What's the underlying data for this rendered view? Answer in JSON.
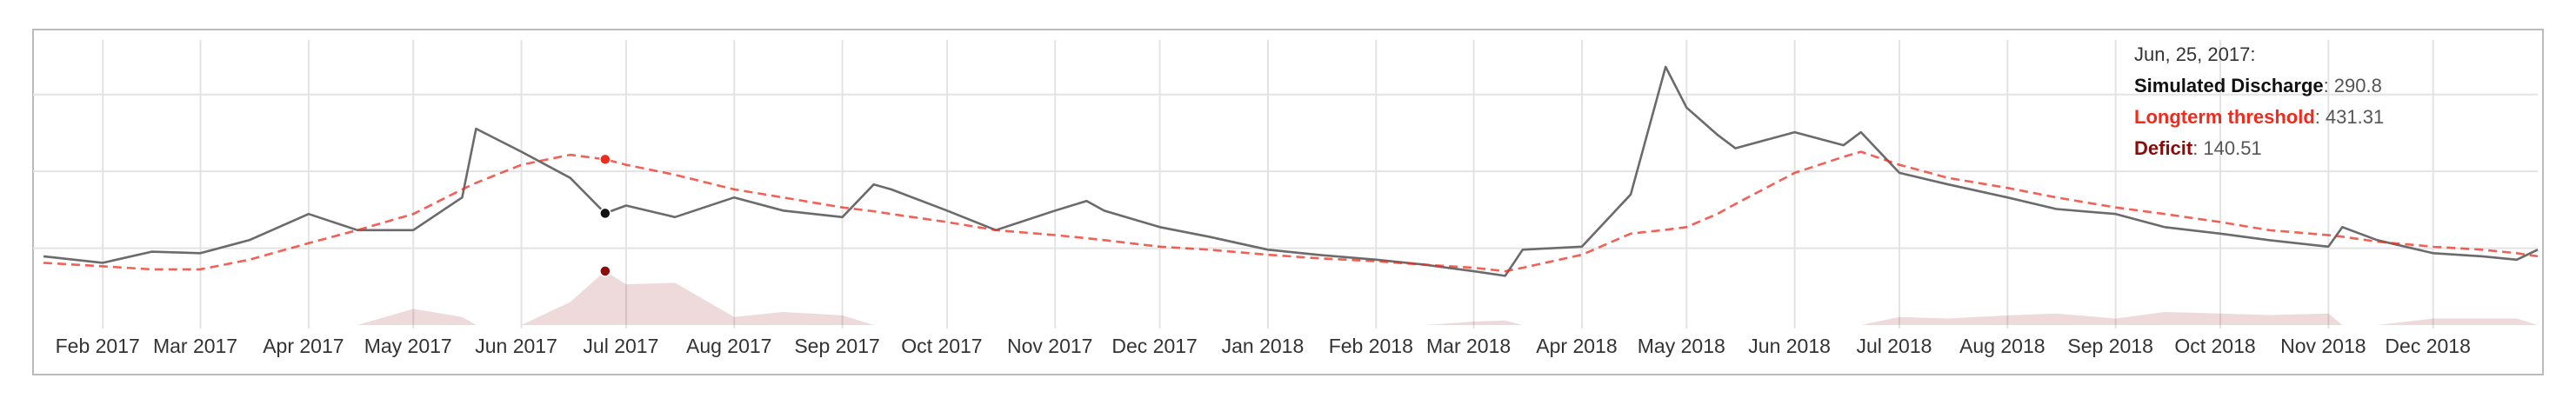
{
  "chart_data": {
    "type": "line",
    "x": [
      "2017-01-15",
      "2017-02-01",
      "2017-02-15",
      "2017-03-01",
      "2017-03-15",
      "2017-04-01",
      "2017-04-15",
      "2017-05-01",
      "2017-05-15",
      "2017-05-19",
      "2017-06-01",
      "2017-06-15",
      "2017-06-25",
      "2017-07-01",
      "2017-07-15",
      "2017-08-01",
      "2017-08-15",
      "2017-09-01",
      "2017-09-10",
      "2017-09-15",
      "2017-10-01",
      "2017-10-15",
      "2017-11-01",
      "2017-11-10",
      "2017-11-15",
      "2017-12-01",
      "2017-12-15",
      "2018-01-01",
      "2018-01-15",
      "2018-02-01",
      "2018-02-15",
      "2018-03-01",
      "2018-03-10",
      "2018-03-15",
      "2018-04-01",
      "2018-04-15",
      "2018-04-25",
      "2018-05-01",
      "2018-05-10",
      "2018-05-15",
      "2018-06-01",
      "2018-06-15",
      "2018-06-20",
      "2018-07-01",
      "2018-07-15",
      "2018-08-01",
      "2018-08-15",
      "2018-09-01",
      "2018-09-15",
      "2018-10-01",
      "2018-10-15",
      "2018-11-01",
      "2018-11-05",
      "2018-11-15",
      "2018-12-01",
      "2018-12-15",
      "2018-12-25",
      "2018-12-31"
    ],
    "series": [
      {
        "name": "Simulated Discharge",
        "color": "#6b6b6b",
        "style": "solid",
        "values": [
          179,
          162,
          191,
          187,
          221,
          289,
          247,
          247,
          332,
          511,
          451,
          383,
          290.8,
          311,
          281,
          332,
          298,
          281,
          366,
          353,
          298,
          247,
          298,
          323,
          298,
          255,
          230,
          196,
          183,
          170,
          157,
          140,
          128,
          196,
          204,
          340,
          672,
          566,
          494,
          460,
          502,
          468,
          502,
          396,
          366,
          332,
          302,
          289,
          255,
          238,
          221,
          204,
          255,
          221,
          187,
          179,
          170,
          196
        ]
      },
      {
        "name": "Longterm threshold",
        "color": "#ee2b1d",
        "style": "dashed",
        "values": [
          162,
          153,
          145,
          145,
          170,
          213,
          247,
          289,
          353,
          370,
          417,
          443,
          431.31,
          417,
          391,
          353,
          332,
          306,
          296,
          289,
          268,
          247,
          234,
          226,
          221,
          204,
          196,
          183,
          174,
          166,
          157,
          149,
          140,
          149,
          183,
          238,
          248,
          255,
          290,
          315,
          396,
          438,
          451,
          417,
          383,
          357,
          332,
          306,
          289,
          268,
          247,
          234,
          230,
          217,
          204,
          196,
          187,
          179
        ]
      },
      {
        "name": "Deficit",
        "color": "#8b0a0a",
        "style": "area",
        "values": [
          0,
          0,
          0,
          0,
          0,
          0,
          0,
          42,
          21,
          0,
          0,
          60,
          140.51,
          106,
          110,
          21,
          34,
          25,
          0,
          0,
          0,
          0,
          0,
          0,
          0,
          0,
          0,
          0,
          0,
          0,
          0,
          9,
          12,
          0,
          0,
          0,
          0,
          0,
          0,
          0,
          0,
          0,
          0,
          21,
          17,
          25,
          30,
          17,
          34,
          30,
          26,
          30,
          0,
          0,
          17,
          17,
          17,
          0
        ]
      }
    ],
    "xlim": [
      "2017-01-12",
      "2018-12-31"
    ],
    "xticks": [
      {
        "value": "2017-02-01",
        "label": "Feb 2017"
      },
      {
        "value": "2017-03-01",
        "label": "Mar 2017"
      },
      {
        "value": "2017-04-01",
        "label": "Apr 2017"
      },
      {
        "value": "2017-05-01",
        "label": "May 2017"
      },
      {
        "value": "2017-06-01",
        "label": "Jun 2017"
      },
      {
        "value": "2017-07-01",
        "label": "Jul 2017"
      },
      {
        "value": "2017-08-01",
        "label": "Aug 2017"
      },
      {
        "value": "2017-09-01",
        "label": "Sep 2017"
      },
      {
        "value": "2017-10-01",
        "label": "Oct 2017"
      },
      {
        "value": "2017-11-01",
        "label": "Nov 2017"
      },
      {
        "value": "2017-12-01",
        "label": "Dec 2017"
      },
      {
        "value": "2018-01-01",
        "label": "Jan 2018"
      },
      {
        "value": "2018-02-01",
        "label": "Feb 2018"
      },
      {
        "value": "2018-03-01",
        "label": "Mar 2018"
      },
      {
        "value": "2018-04-01",
        "label": "Apr 2018"
      },
      {
        "value": "2018-05-01",
        "label": "May 2018"
      },
      {
        "value": "2018-06-01",
        "label": "Jun 2018"
      },
      {
        "value": "2018-07-01",
        "label": "Jul 2018"
      },
      {
        "value": "2018-08-01",
        "label": "Aug 2018"
      },
      {
        "value": "2018-09-01",
        "label": "Sep 2018"
      },
      {
        "value": "2018-10-01",
        "label": "Oct 2018"
      },
      {
        "value": "2018-11-01",
        "label": "Nov 2018"
      },
      {
        "value": "2018-12-01",
        "label": "Dec 2018"
      }
    ],
    "ylim": [
      0,
      760
    ],
    "yticks": [
      200,
      400,
      600
    ],
    "grid": true,
    "tooltip": {
      "title": "Jun, 25, 2017:",
      "separator": ":",
      "x": "2017-06-25"
    }
  }
}
